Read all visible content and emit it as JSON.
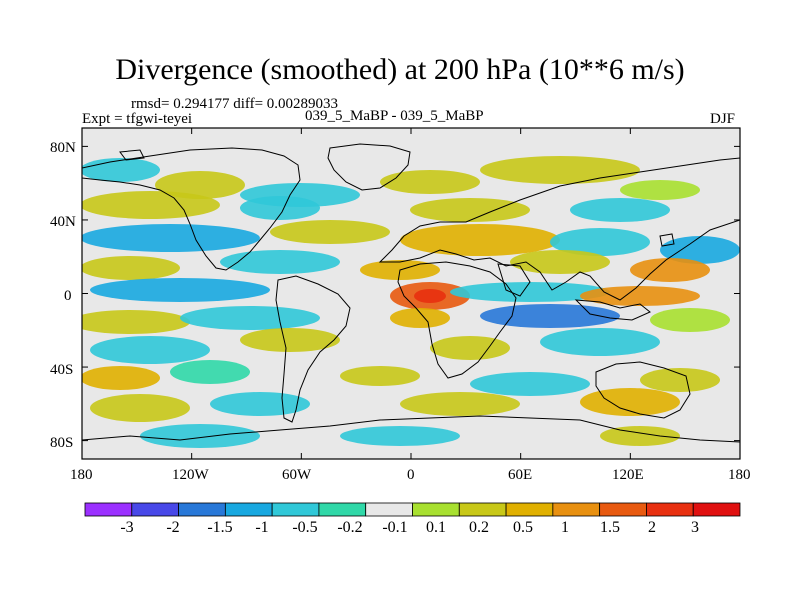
{
  "title": "Divergence (smoothed) at 200 hPa (10**6 m/s)",
  "stats": "rmsd= 0.294177 diff= 0.00289033",
  "left_label": "Expt = tfgwi-teyei",
  "center_label": "039_5_MaBP - 039_5_MaBP",
  "right_label": "DJF",
  "colors": {
    "ocean": "#e8e8e8",
    "coastline": "#000000",
    "levels": [
      "#9b30ff",
      "#4848e8",
      "#2878d8",
      "#18a8e0",
      "#30c8d8",
      "#30d8a8",
      "#e8e8e8",
      "#a8e030",
      "#c8c818",
      "#e0b000",
      "#e89010",
      "#e85a10",
      "#e83010",
      "#e01010"
    ]
  },
  "map": {
    "x_ticks": [
      "180",
      "120W",
      "60W",
      "0",
      "60E",
      "120E",
      "180"
    ],
    "y_ticks": [
      "80N",
      "40N",
      "0",
      "40S",
      "80S"
    ]
  },
  "colorbar": {
    "labels": [
      "-3",
      "-2",
      "-1.5",
      "-1",
      "-0.5",
      "-0.2",
      "-0.1",
      "0.1",
      "0.2",
      "0.5",
      "1",
      "1.5",
      "2",
      "3"
    ]
  }
}
